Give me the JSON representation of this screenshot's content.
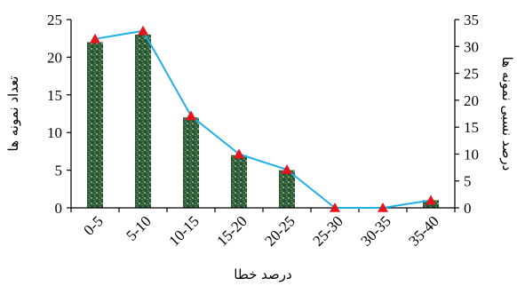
{
  "chart_data": {
    "type": "bar",
    "categories": [
      "0-5",
      "5-10",
      "10-15",
      "15-20",
      "20-25",
      "25-30",
      "30-35",
      "35-40"
    ],
    "series": [
      {
        "type": "bar",
        "axis": "left",
        "values": [
          22,
          23,
          12,
          7,
          5,
          0,
          0,
          1
        ]
      },
      {
        "type": "line",
        "axis": "right",
        "values": [
          31.4,
          32.9,
          17.1,
          10.0,
          7.1,
          0,
          0,
          1.4
        ]
      }
    ],
    "xlabel": "درصد خطا",
    "ylabel_left": "تعداد نمونه ها",
    "ylabel_right": "درصد نسبی نمونه ها",
    "ylim_left": [
      0,
      25
    ],
    "ylim_right": [
      0,
      35
    ],
    "yticks_left": [
      "0",
      "5",
      "10",
      "15",
      "20",
      "25"
    ],
    "yticks_right": [
      "0",
      "5",
      "10",
      "15",
      "20",
      "25",
      "30",
      "35"
    ],
    "grid": false,
    "legend": "none",
    "colors": {
      "bar_dark": "#1f4a2c",
      "bar_light": "#6f9a6f",
      "line": "#1fb1e6",
      "marker": "#e8141b",
      "axis": "#000000"
    }
  }
}
